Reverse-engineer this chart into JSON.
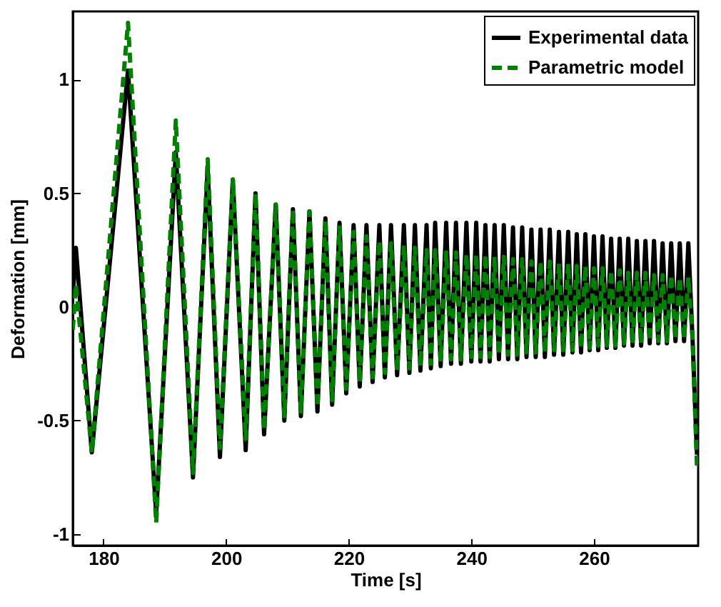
{
  "chart_data": {
    "type": "line",
    "xlabel": "Time [s]",
    "ylabel": "Deformation [mm]",
    "xlim": [
      175,
      277
    ],
    "ylim": [
      -1.05,
      1.3
    ],
    "xticks": [
      180,
      200,
      220,
      240,
      260
    ],
    "yticks": [
      -1,
      -0.5,
      0,
      0.5,
      1
    ],
    "grid": false,
    "legend": "top right",
    "marker": "none",
    "x": [
      175,
      175.5,
      178.1,
      184.0,
      188.6,
      191.8,
      194.6,
      197.0,
      199.0,
      201.1,
      203.2,
      204.8,
      206.2,
      208.1,
      209.5,
      210.9,
      212.2,
      213.6,
      214.9,
      216.2,
      217.3,
      218.5,
      219.6,
      220.8,
      221.8,
      222.9,
      223.9,
      225.0,
      225.9,
      226.9,
      227.9,
      229.0,
      229.9,
      230.8,
      231.7,
      232.7,
      233.4,
      234.1,
      235.0,
      235.9,
      236.7,
      237.5,
      238.3,
      239.2,
      240.0,
      240.8,
      241.5,
      242.3,
      243.0,
      243.8,
      244.5,
      245.3,
      246.0,
      246.8,
      247.5,
      248.3,
      249.0,
      249.8,
      250.5,
      251.3,
      252.0,
      252.8,
      253.5,
      254.3,
      255.0,
      255.8,
      256.5,
      257.2,
      257.9,
      258.6,
      259.3,
      260.0,
      260.7,
      261.4,
      262.1,
      262.8,
      263.5,
      264.2,
      264.9,
      265.6,
      266.3,
      267.0,
      267.7,
      268.4,
      269.1,
      269.8,
      270.5,
      271.2,
      271.9,
      272.6,
      273.3,
      274.0,
      274.7,
      275.4,
      276.1,
      276.8
    ],
    "series": [
      {
        "name": "Experimental data",
        "color": "#000000",
        "line_style": "solid",
        "values": [
          0.05,
          0.26,
          -0.64,
          1.04,
          -0.91,
          0.68,
          -0.75,
          0.61,
          -0.66,
          0.56,
          -0.63,
          0.5,
          -0.56,
          0.45,
          -0.5,
          0.43,
          -0.48,
          0.42,
          -0.46,
          0.39,
          -0.43,
          0.37,
          -0.38,
          0.36,
          -0.35,
          0.36,
          -0.33,
          0.36,
          -0.31,
          0.36,
          -0.3,
          0.36,
          -0.29,
          0.36,
          -0.28,
          0.36,
          -0.27,
          0.37,
          -0.26,
          0.37,
          -0.25,
          0.37,
          -0.25,
          0.37,
          -0.24,
          0.37,
          -0.24,
          0.36,
          -0.24,
          0.36,
          -0.23,
          0.36,
          -0.23,
          0.35,
          -0.23,
          0.35,
          -0.22,
          0.34,
          -0.22,
          0.34,
          -0.22,
          0.34,
          -0.21,
          0.33,
          -0.21,
          0.33,
          -0.2,
          0.32,
          -0.2,
          0.32,
          -0.19,
          0.31,
          -0.19,
          0.31,
          -0.18,
          0.3,
          -0.18,
          0.3,
          -0.17,
          0.3,
          -0.17,
          0.29,
          -0.17,
          0.29,
          -0.16,
          0.29,
          -0.16,
          0.28,
          -0.16,
          0.28,
          -0.15,
          0.28,
          -0.15,
          0.28,
          -0.15,
          -0.65
        ]
      },
      {
        "name": "Parametric model",
        "color": "#008000",
        "line_style": "dashed",
        "values": [
          -0.1,
          0.1,
          -0.64,
          1.25,
          -0.95,
          0.82,
          -0.73,
          0.65,
          -0.62,
          0.56,
          -0.58,
          0.5,
          -0.54,
          0.45,
          -0.48,
          0.43,
          -0.46,
          0.42,
          -0.44,
          0.38,
          -0.41,
          0.35,
          -0.36,
          0.33,
          -0.33,
          0.31,
          -0.31,
          0.29,
          -0.29,
          0.28,
          -0.28,
          0.27,
          -0.27,
          0.26,
          -0.26,
          0.25,
          -0.25,
          0.25,
          -0.24,
          0.24,
          -0.23,
          0.24,
          -0.23,
          0.23,
          -0.22,
          0.23,
          -0.22,
          0.23,
          -0.22,
          0.22,
          -0.21,
          0.22,
          -0.21,
          0.21,
          -0.21,
          0.21,
          -0.2,
          0.2,
          -0.2,
          0.2,
          -0.2,
          0.2,
          -0.19,
          0.19,
          -0.19,
          0.19,
          -0.19,
          0.18,
          -0.18,
          0.18,
          -0.18,
          0.17,
          -0.17,
          0.17,
          -0.17,
          0.16,
          -0.17,
          0.16,
          -0.16,
          0.15,
          -0.16,
          0.15,
          -0.16,
          0.15,
          -0.15,
          0.14,
          -0.15,
          0.14,
          -0.15,
          0.14,
          -0.14,
          0.13,
          -0.14,
          0.13,
          -0.14,
          -0.7
        ]
      }
    ]
  }
}
